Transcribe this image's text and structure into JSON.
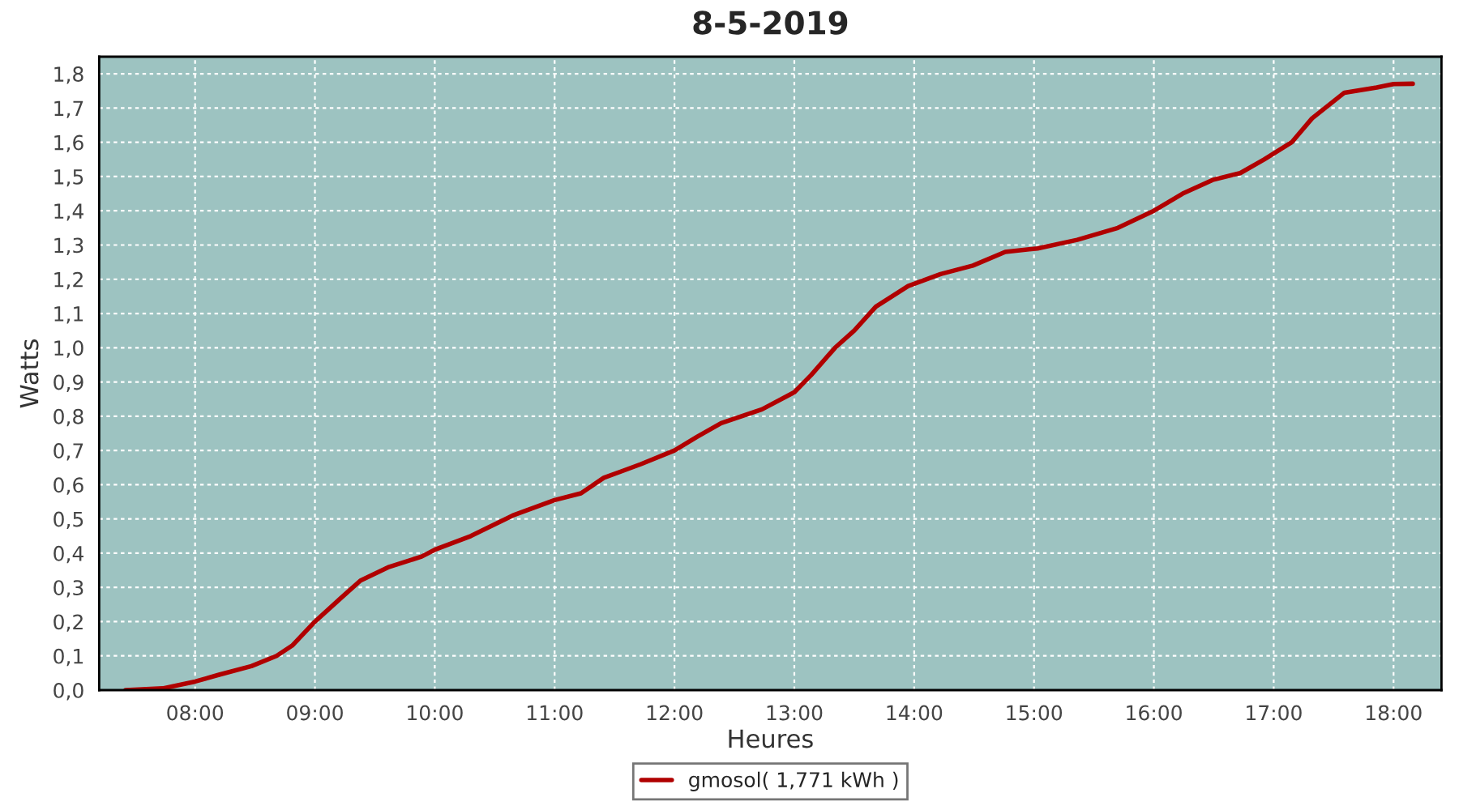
{
  "chart_data": {
    "type": "line",
    "title": "8-5-2019",
    "xlabel": "Heures",
    "ylabel": "Watts",
    "series": [
      {
        "name": "gmosol( 1,771 kWh )",
        "color": "#b00000",
        "x": [
          7.42,
          7.73,
          8.0,
          8.2,
          8.47,
          8.68,
          8.81,
          9.0,
          9.22,
          9.38,
          9.62,
          9.89,
          10.0,
          10.3,
          10.65,
          11.0,
          11.22,
          11.41,
          11.72,
          12.0,
          12.19,
          12.39,
          12.73,
          13.0,
          13.14,
          13.34,
          13.5,
          13.68,
          13.95,
          14.22,
          14.49,
          14.76,
          15.03,
          15.36,
          15.7,
          16.0,
          16.24,
          16.49,
          16.72,
          16.92,
          17.15,
          17.32,
          17.59,
          17.86,
          18.0,
          18.16
        ],
        "values": [
          0.0,
          0.005,
          0.025,
          0.045,
          0.07,
          0.1,
          0.13,
          0.2,
          0.27,
          0.32,
          0.36,
          0.39,
          0.41,
          0.45,
          0.51,
          0.555,
          0.575,
          0.62,
          0.66,
          0.7,
          0.74,
          0.78,
          0.82,
          0.87,
          0.92,
          1.0,
          1.05,
          1.12,
          1.18,
          1.215,
          1.24,
          1.28,
          1.29,
          1.315,
          1.35,
          1.4,
          1.45,
          1.49,
          1.51,
          1.55,
          1.6,
          1.67,
          1.745,
          1.76,
          1.77,
          1.771
        ]
      }
    ],
    "xlim": [
      7.2,
      18.4
    ],
    "xticks": [
      {
        "value": 8,
        "label": "08:00"
      },
      {
        "value": 9,
        "label": "09:00"
      },
      {
        "value": 10,
        "label": "10:00"
      },
      {
        "value": 11,
        "label": "11:00"
      },
      {
        "value": 12,
        "label": "12:00"
      },
      {
        "value": 13,
        "label": "13:00"
      },
      {
        "value": 14,
        "label": "14:00"
      },
      {
        "value": 15,
        "label": "15:00"
      },
      {
        "value": 16,
        "label": "16:00"
      },
      {
        "value": 17,
        "label": "17:00"
      },
      {
        "value": 18,
        "label": "18:00"
      }
    ],
    "ylim": [
      0,
      1.85
    ],
    "yticks": [
      {
        "value": 0,
        "label": "0,0"
      },
      {
        "value": 0.1,
        "label": "0,1"
      },
      {
        "value": 0.2,
        "label": "0,2"
      },
      {
        "value": 0.3,
        "label": "0,3"
      },
      {
        "value": 0.4,
        "label": "0,4"
      },
      {
        "value": 0.5,
        "label": "0,5"
      },
      {
        "value": 0.6,
        "label": "0,6"
      },
      {
        "value": 0.7,
        "label": "0,7"
      },
      {
        "value": 0.8,
        "label": "0,8"
      },
      {
        "value": 0.9,
        "label": "0,9"
      },
      {
        "value": 1.0,
        "label": "1,0"
      },
      {
        "value": 1.1,
        "label": "1,1"
      },
      {
        "value": 1.2,
        "label": "1,2"
      },
      {
        "value": 1.3,
        "label": "1,3"
      },
      {
        "value": 1.4,
        "label": "1,4"
      },
      {
        "value": 1.5,
        "label": "1,5"
      },
      {
        "value": 1.6,
        "label": "1,6"
      },
      {
        "value": 1.7,
        "label": "1,7"
      },
      {
        "value": 1.8,
        "label": "1,8"
      }
    ],
    "grid": true,
    "legend": "bottom",
    "marker": "none",
    "line_style": "solid"
  }
}
